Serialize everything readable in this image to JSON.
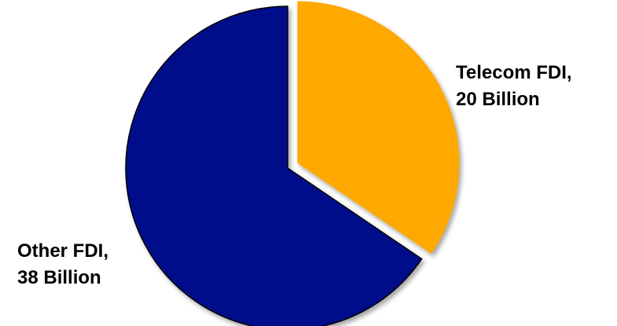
{
  "chart_data": {
    "type": "pie",
    "slices": [
      {
        "label_line1": "Telecom FDI,",
        "label_line2": "20 Billion",
        "category": "Telecom FDI",
        "value": 20,
        "unit": "Billion",
        "color": "#FFA800",
        "exploded": true
      },
      {
        "label_line1": "Other FDI,",
        "label_line2": "38 Billion",
        "category": "Other FDI",
        "value": 38,
        "unit": "Billion",
        "color": "#00118A",
        "exploded": false
      }
    ],
    "legend": "none"
  }
}
